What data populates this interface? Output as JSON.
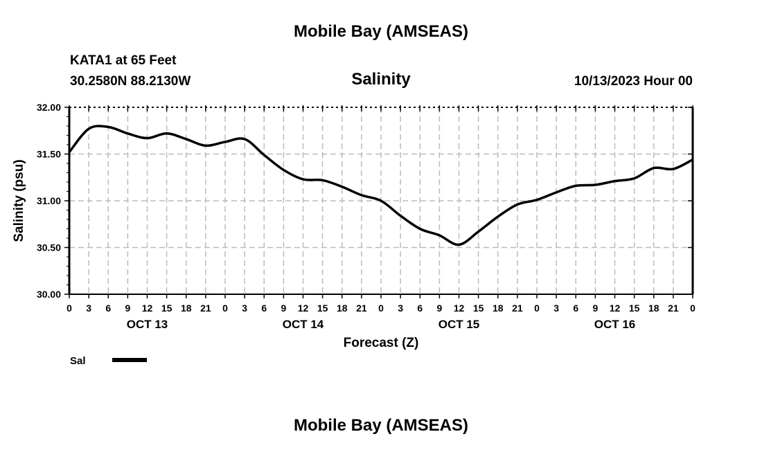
{
  "header": {
    "title": "Mobile Bay (AMSEAS)",
    "station": "KATA1 at 65 Feet",
    "coords": "30.2580N  88.2130W",
    "chart_title": "Salinity",
    "run_time": "10/13/2023 Hour 00"
  },
  "footer": {
    "title": "Mobile Bay (AMSEAS)"
  },
  "chart_data": {
    "type": "line",
    "title": "Salinity",
    "xlabel": "Forecast (Z)",
    "ylabel": "Salinity (psu)",
    "ylim": [
      30.0,
      32.0
    ],
    "xlim_hours": [
      0,
      96
    ],
    "grid": true,
    "y_ticks": [
      "32.00",
      "31.50",
      "31.00",
      "30.50",
      "30.00"
    ],
    "y_tick_values": [
      32.0,
      31.5,
      31.0,
      30.5,
      30.0
    ],
    "x_tick_labels": [
      "0",
      "3",
      "6",
      "9",
      "12",
      "15",
      "18",
      "21",
      "0",
      "3",
      "6",
      "9",
      "12",
      "15",
      "18",
      "21",
      "0",
      "3",
      "6",
      "9",
      "12",
      "15",
      "18",
      "21",
      "0",
      "3",
      "6",
      "9",
      "12",
      "15",
      "18",
      "21",
      "0"
    ],
    "date_labels": [
      {
        "text": "OCT 13",
        "hour": 12
      },
      {
        "text": "OCT 14",
        "hour": 36
      },
      {
        "text": "OCT 15",
        "hour": 60
      },
      {
        "text": "OCT 16",
        "hour": 84
      }
    ],
    "legend": {
      "placement": "bottom-left",
      "entries": [
        {
          "name": "Sal",
          "color": "#000000"
        }
      ]
    },
    "series": [
      {
        "name": "Sal",
        "color": "#000000",
        "x_hours": [
          0,
          3,
          6,
          9,
          12,
          15,
          18,
          21,
          24,
          27,
          30,
          33,
          36,
          39,
          42,
          45,
          48,
          51,
          54,
          57,
          60,
          63,
          66,
          69,
          72,
          75,
          78,
          81,
          84,
          87,
          90,
          93,
          96
        ],
        "values": [
          31.52,
          31.77,
          31.79,
          31.72,
          31.67,
          31.72,
          31.66,
          31.59,
          31.63,
          31.66,
          31.49,
          31.33,
          31.23,
          31.22,
          31.15,
          31.06,
          31.0,
          30.84,
          30.7,
          30.63,
          30.53,
          30.67,
          30.83,
          30.96,
          31.01,
          31.09,
          31.16,
          31.17,
          31.21,
          31.24,
          31.35,
          31.34,
          31.44
        ]
      }
    ]
  }
}
